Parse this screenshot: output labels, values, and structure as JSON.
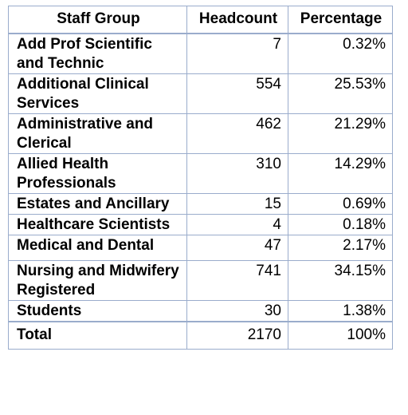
{
  "columns": [
    "Staff Group",
    "Headcount",
    "Percentage"
  ],
  "rows": [
    {
      "group": "Add Prof Scientific and Technic",
      "headcount": "7",
      "percentage": "0.32%"
    },
    {
      "group": "Additional Clinical Services",
      "headcount": "554",
      "percentage": "25.53%"
    },
    {
      "group": "Administrative and Clerical",
      "headcount": "462",
      "percentage": "21.29%"
    },
    {
      "group": "Allied Health Professionals",
      "headcount": "310",
      "percentage": "14.29%"
    },
    {
      "group": "Estates and Ancillary",
      "headcount": "15",
      "percentage": "0.69%"
    },
    {
      "group": "Healthcare Scientists",
      "headcount": "4",
      "percentage": "0.18%"
    },
    {
      "group": "Medical and Dental",
      "headcount": "47",
      "percentage": "2.17%"
    },
    {
      "group": "Nursing and Midwifery Registered",
      "headcount": "741",
      "percentage": "34.15%"
    },
    {
      "group": "Students",
      "headcount": "30",
      "percentage": "1.38%"
    }
  ],
  "total": {
    "group": "Total",
    "headcount": "2170",
    "percentage": "100%"
  },
  "colors": {
    "border": "#9aaccc",
    "text": "#000000"
  }
}
